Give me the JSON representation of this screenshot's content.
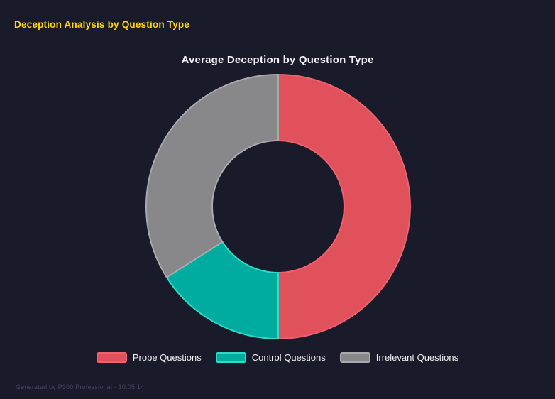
{
  "page": {
    "header_title": "Deception Analysis by Question Type",
    "footer": "Generated by P300 Professional - 10:05:14"
  },
  "colors": {
    "background": "#1a1b2a",
    "header_title": "#ffd700",
    "chart_title": "#f2f2f5",
    "legend_text": "#f0f0f3",
    "footer_text": "#3f4660"
  },
  "chart_data": {
    "type": "pie",
    "variant": "donut",
    "title": "Average Deception by Question Type",
    "categories": [
      "Probe Questions",
      "Control Questions",
      "Irrelevant Questions"
    ],
    "values": [
      50,
      16,
      34
    ],
    "value_format": "percent share of donut, estimated from arc angles (no numeric labels shown)",
    "colors": [
      "#e0515c",
      "#00ac9f",
      "#88888b"
    ],
    "border_colors": [
      "#ef626d",
      "#2cdcc6",
      "#aaaaae"
    ],
    "start_angle_deg": 0,
    "direction": "clockwise",
    "inner_radius_ratio": 0.5,
    "legend_position": "bottom",
    "data_labels": false,
    "grid": false
  }
}
